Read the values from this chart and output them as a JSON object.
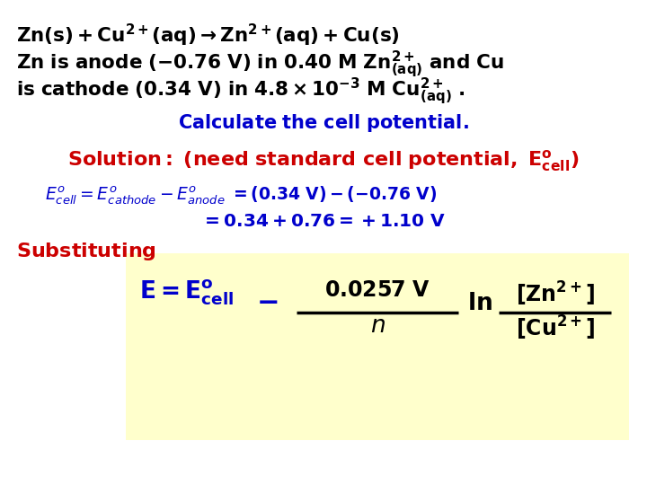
{
  "bg_color": "#ffffff",
  "yellow_box_color": "#ffffcc",
  "black": "#000000",
  "blue": "#1a1aff",
  "dark_blue": "#0000cc",
  "red": "#cc0000"
}
